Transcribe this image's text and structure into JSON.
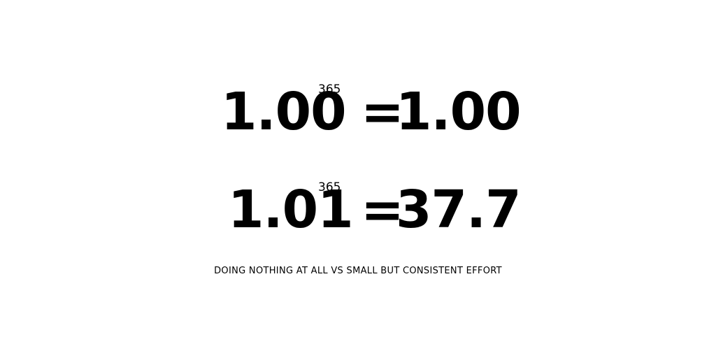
{
  "equations": [
    {
      "base": "1.00",
      "exponent": "365",
      "equals": "=",
      "result": "1.00"
    },
    {
      "base": "1.01",
      "exponent": "365",
      "equals": "=",
      "result": "37.7"
    }
  ],
  "caption": "DOING NOTHING AT ALL VS SMALL BUT CONSISTENT EFFORT",
  "colors": {
    "background": "#ffffff",
    "text": "#000000"
  }
}
